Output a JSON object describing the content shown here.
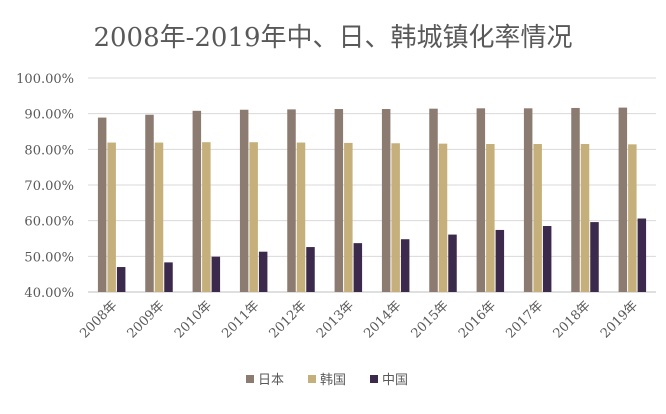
{
  "chart_data": {
    "type": "bar",
    "title": "2008年-2019年中、日、韩城镇化率情况",
    "categories": [
      "2008年",
      "2009年",
      "2010年",
      "2011年",
      "2012年",
      "2013年",
      "2014年",
      "2015年",
      "2016年",
      "2017年",
      "2018年",
      "2019年"
    ],
    "series": [
      {
        "name": "日本",
        "color": "#8c7b70",
        "values": [
          88.9,
          89.7,
          90.8,
          91.1,
          91.2,
          91.3,
          91.3,
          91.4,
          91.5,
          91.5,
          91.6,
          91.7
        ]
      },
      {
        "name": "韩国",
        "color": "#c5b07c",
        "values": [
          81.9,
          81.9,
          82.0,
          82.0,
          81.9,
          81.8,
          81.7,
          81.6,
          81.5,
          81.5,
          81.5,
          81.4
        ]
      },
      {
        "name": "中国",
        "color": "#3b2a4c",
        "values": [
          47.0,
          48.3,
          49.9,
          51.3,
          52.6,
          53.7,
          54.8,
          56.1,
          57.4,
          58.5,
          59.6,
          60.6
        ]
      }
    ],
    "y_ticks": [
      "40.00%",
      "50.00%",
      "60.00%",
      "70.00%",
      "80.00%",
      "90.00%",
      "100.00%"
    ],
    "ylim": [
      40,
      100
    ],
    "xlabel": "",
    "ylabel": "",
    "grid": true,
    "legend_position": "bottom"
  }
}
